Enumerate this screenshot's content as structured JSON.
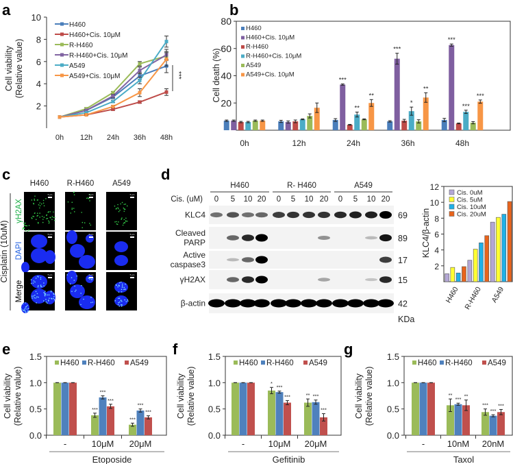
{
  "panel_labels": {
    "a": "a",
    "b": "b",
    "c": "c",
    "d": "d",
    "e": "e",
    "f": "f",
    "g": "g"
  },
  "chart_data": [
    {
      "id": "a",
      "type": "line",
      "ylabel": [
        "Cell viability",
        "(Relative value)"
      ],
      "categories": [
        "0h",
        "12h",
        "24h",
        "36h",
        "48h"
      ],
      "ylim": [
        0,
        10
      ],
      "yticks": [
        2,
        4,
        6,
        8,
        10
      ],
      "series": [
        {
          "name": "H460",
          "color": "#4a7ebb",
          "marker": "diamond",
          "values": [
            1,
            1.6,
            2.8,
            4.7,
            5.6
          ],
          "errors": [
            0,
            0.1,
            0.15,
            0.3,
            0.6
          ]
        },
        {
          "name": "H460+Cis. 10μM",
          "color": "#be4b48",
          "marker": "square",
          "values": [
            1,
            1.2,
            1.7,
            2.35,
            3.25
          ],
          "errors": [
            0,
            0.05,
            0.1,
            0.1,
            0.3
          ]
        },
        {
          "name": "R-H460",
          "color": "#9bbb59",
          "marker": "triangle",
          "values": [
            1,
            1.75,
            3.2,
            5.8,
            6.5
          ],
          "errors": [
            0,
            0.1,
            0.1,
            0.2,
            0.4
          ]
        },
        {
          "name": "R-H460+Cis. 10μM",
          "color": "#8064a2",
          "marker": "x",
          "values": [
            1,
            1.6,
            2.9,
            5.2,
            6.6
          ],
          "errors": [
            0,
            0.1,
            0.15,
            0.3,
            0.5
          ]
        },
        {
          "name": "A549",
          "color": "#4bacc6",
          "marker": "x",
          "values": [
            1,
            1.4,
            2.4,
            4.3,
            7.8
          ],
          "errors": [
            0,
            0.1,
            0.1,
            0.3,
            0.5
          ]
        },
        {
          "name": "A549+Cis. 10μM",
          "color": "#f79646",
          "marker": "circle",
          "values": [
            1,
            1.2,
            1.95,
            3.2,
            6.2
          ],
          "errors": [
            0,
            0.05,
            0.1,
            0.35,
            0.6
          ]
        }
      ],
      "significance": "***"
    },
    {
      "id": "b",
      "type": "bar",
      "ylabel": [
        "Cell death (%)"
      ],
      "categories": [
        "0h",
        "12h",
        "24h",
        "36h",
        "48h"
      ],
      "ylim": [
        0,
        80
      ],
      "yticks": [
        20,
        40,
        60,
        80
      ],
      "series": [
        {
          "name": "H460",
          "color": "#4a7ebb",
          "values": [
            7,
            6.5,
            7.5,
            6.5,
            7.5
          ],
          "errors": [
            0.5,
            0.8,
            1,
            0.5,
            1.2
          ],
          "stars": [
            "",
            "",
            "",
            "",
            ""
          ]
        },
        {
          "name": "H460+Cis. 10μM",
          "color": "#7f5fa0",
          "values": [
            7,
            6,
            33.5,
            52.5,
            62.5
          ],
          "errors": [
            0.5,
            0.8,
            0.5,
            4,
            0.8
          ],
          "stars": [
            "",
            "",
            "***",
            "***",
            "***"
          ]
        },
        {
          "name": "R-H460",
          "color": "#be4b48",
          "values": [
            6,
            6.5,
            4,
            7,
            5
          ],
          "errors": [
            0.5,
            1,
            0.3,
            1,
            0.3
          ],
          "stars": [
            "",
            "",
            "",
            "",
            ""
          ]
        },
        {
          "name": "R-H460+Cis. 10μM",
          "color": "#4bacc6",
          "values": [
            6,
            8,
            11.5,
            14,
            13.5
          ],
          "errors": [
            0.5,
            0.3,
            1.8,
            3,
            1.2
          ],
          "stars": [
            "",
            "",
            "**",
            "*",
            "***"
          ]
        },
        {
          "name": "A549",
          "color": "#9bbb59",
          "values": [
            7,
            10.5,
            8,
            6.5,
            5.5
          ],
          "errors": [
            0.5,
            1.5,
            0.3,
            1.2,
            0.8
          ],
          "stars": [
            "",
            "",
            "",
            "",
            ""
          ]
        },
        {
          "name": "A549+Cis. 10μM",
          "color": "#f79646",
          "values": [
            7,
            16.5,
            20,
            24,
            21
          ],
          "errors": [
            0.5,
            3.5,
            2.5,
            3.5,
            1.2
          ],
          "stars": [
            "",
            "",
            "**",
            "**",
            "***"
          ]
        }
      ]
    },
    {
      "id": "d-quant",
      "type": "bar",
      "ylabel": [
        "KLC4/β-actin"
      ],
      "categories": [
        "H460",
        "R-H460",
        "A549"
      ],
      "ylim": [
        0,
        12
      ],
      "yticks": [
        2,
        4,
        6,
        8,
        10,
        12
      ],
      "series": [
        {
          "name": "Cis.   0uM",
          "color": "#b4a7d6",
          "values": [
            1.0,
            2.7,
            7.5
          ]
        },
        {
          "name": "Cis.   5uM",
          "color": "#ffff33",
          "values": [
            1.8,
            4.1,
            8.1
          ]
        },
        {
          "name": "Cis. 10uM",
          "color": "#1fb0e8",
          "values": [
            1.1,
            4.9,
            8.5
          ]
        },
        {
          "name": "Cis. 20uM",
          "color": "#e8641c",
          "values": [
            1.9,
            5.8,
            10.1
          ]
        }
      ]
    },
    {
      "id": "e",
      "type": "bar",
      "ylabel": [
        "Cell viability",
        "(Relative value)"
      ],
      "xlabel": "Etoposide",
      "categories": [
        "-",
        "10μM",
        "20μM"
      ],
      "ylim": [
        0,
        1.5
      ],
      "yticks": [
        0.0,
        0.5,
        1.0,
        1.5
      ],
      "ytick_labels": [
        "0.0",
        "0.5",
        "1.0",
        "1.5"
      ],
      "series": [
        {
          "name": "H460",
          "color": "#9bbb59",
          "values": [
            1,
            0.38,
            0.2
          ],
          "errors": [
            0,
            0.04,
            0.03
          ],
          "stars": [
            "",
            "***",
            "***"
          ]
        },
        {
          "name": "R-H460",
          "color": "#4f81bd",
          "values": [
            1,
            0.72,
            0.47
          ],
          "errors": [
            0,
            0.03,
            0.03
          ],
          "stars": [
            "",
            "***",
            "***"
          ]
        },
        {
          "name": "A549",
          "color": "#c0504d",
          "values": [
            1,
            0.55,
            0.34
          ],
          "errors": [
            0,
            0.04,
            0.03
          ],
          "stars": [
            "",
            "***",
            "***"
          ]
        }
      ]
    },
    {
      "id": "f",
      "type": "bar",
      "ylabel": [
        "Cell viability",
        "(Relative value)"
      ],
      "xlabel": "Gefitinib",
      "categories": [
        "-",
        "10μM",
        "20μM"
      ],
      "ylim": [
        0,
        1.5
      ],
      "yticks": [
        0.0,
        0.5,
        1.0,
        1.5
      ],
      "ytick_labels": [
        "0.0",
        "0.5",
        "1.0",
        "1.5"
      ],
      "series": [
        {
          "name": "H460",
          "color": "#9bbb59",
          "values": [
            1,
            0.85,
            0.62
          ],
          "errors": [
            0,
            0.06,
            0.07
          ],
          "stars": [
            "",
            "*",
            "**"
          ]
        },
        {
          "name": "R-H460",
          "color": "#4f81bd",
          "values": [
            1,
            0.82,
            0.63
          ],
          "errors": [
            0,
            0.02,
            0.04
          ],
          "stars": [
            "",
            "***",
            "***"
          ]
        },
        {
          "name": "A549",
          "color": "#c0504d",
          "values": [
            1,
            0.62,
            0.34
          ],
          "errors": [
            0,
            0.04,
            0.07
          ],
          "stars": [
            "",
            "***",
            "***"
          ]
        }
      ]
    },
    {
      "id": "g",
      "type": "bar",
      "ylabel": [
        "Cell viability",
        "(Relative value)"
      ],
      "xlabel": "Taxol",
      "categories": [
        "-",
        "10nM",
        "20nM"
      ],
      "ylim": [
        0,
        1.5
      ],
      "yticks": [
        0.0,
        0.5,
        1.0,
        1.5
      ],
      "ytick_labels": [
        "0.0",
        "0.5",
        "1.0",
        "1.5"
      ],
      "series": [
        {
          "name": "H460",
          "color": "#9bbb59",
          "values": [
            1,
            0.57,
            0.44
          ],
          "errors": [
            0,
            0.12,
            0.06
          ],
          "stars": [
            "",
            "**",
            "***"
          ]
        },
        {
          "name": "R-H460",
          "color": "#4f81bd",
          "values": [
            1,
            0.59,
            0.37
          ],
          "errors": [
            0,
            0.02,
            0.02
          ],
          "stars": [
            "",
            "***",
            "***"
          ]
        },
        {
          "name": "A549",
          "color": "#c0504d",
          "values": [
            1,
            0.57,
            0.44
          ],
          "errors": [
            0,
            0.1,
            0.05
          ],
          "stars": [
            "",
            "**",
            "***"
          ]
        }
      ]
    }
  ],
  "panel_c": {
    "columns": [
      "H460",
      "R-H460",
      "A549"
    ],
    "rows": [
      {
        "label": "γH2AX",
        "color": "#22b14c"
      },
      {
        "label": "DAPI",
        "color": "#1f5fe0"
      },
      {
        "label": "Merge",
        "color": "#000000"
      }
    ],
    "side_label": "Cisplatin (10uM)",
    "scale_bar": "5 μm",
    "foci_density": [
      1.0,
      0.3,
      0.5
    ]
  },
  "panel_d": {
    "groups": [
      "H460",
      "R- H460",
      "A549"
    ],
    "dose_label": "Cis. (uM)",
    "doses": [
      "0",
      "5",
      "10",
      "20",
      "0",
      "5",
      "10",
      "20",
      "0",
      "5",
      "10",
      "20"
    ],
    "rows": [
      {
        "label": [
          "KLC4"
        ],
        "mw": "69",
        "intensity": [
          0.45,
          0.6,
          0.45,
          0.5,
          0.7,
          0.75,
          0.75,
          0.75,
          0.8,
          0.85,
          0.85,
          1.0
        ]
      },
      {
        "label": [
          "Cleaved",
          "PARP"
        ],
        "mw": "89",
        "intensity": [
          0,
          0.5,
          0.8,
          1,
          0,
          0,
          0,
          0.3,
          0,
          0,
          0.1,
          0.9
        ]
      },
      {
        "label": [
          "Active",
          "caspase3"
        ],
        "mw": "17",
        "intensity": [
          0,
          0.1,
          0.5,
          1,
          0,
          0,
          0,
          0,
          0,
          0,
          0,
          0.7
        ]
      },
      {
        "label": [
          "γH2AX"
        ],
        "mw": "15",
        "intensity": [
          0,
          0.5,
          0.8,
          1,
          0,
          0,
          0,
          0.2,
          0,
          0,
          0.05,
          0.8
        ]
      },
      {
        "label": [
          "β-actin"
        ],
        "mw": "42",
        "intensity": [
          1,
          1,
          1,
          1,
          1,
          1,
          1,
          1,
          1,
          1,
          1,
          1
        ]
      }
    ],
    "mw_unit": "KDa"
  }
}
